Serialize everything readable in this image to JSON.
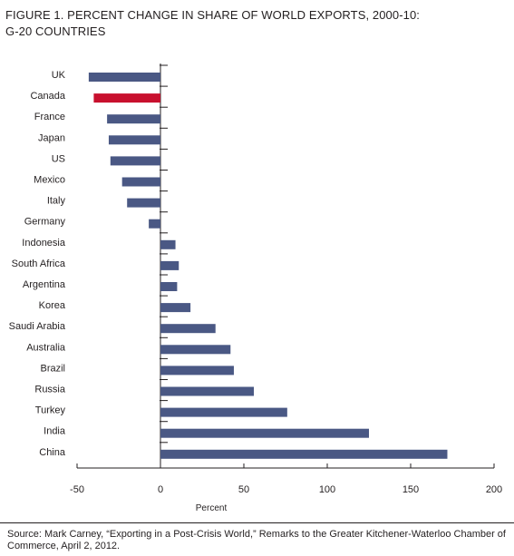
{
  "title_line1": "FIGURE 1. PERCENT CHANGE IN SHARE OF WORLD EXPORTS, 2000-10:",
  "title_line2": "G-20 COUNTRIES",
  "source": "Source: Mark Carney, “Exporting in a Post-Crisis World,” Remarks to the Greater Kitchener-Waterloo Chamber of Commerce, April 2, 2012.",
  "colors": {
    "bar": "#4a5884",
    "highlight": "#c8102e",
    "axis": "#231f20",
    "text": "#231f20"
  },
  "chart_data": {
    "type": "bar",
    "orientation": "horizontal",
    "categories": [
      "UK",
      "Canada",
      "France",
      "Japan",
      "US",
      "Mexico",
      "Italy",
      "Germany",
      "Indonesia",
      "South Africa",
      "Argentina",
      "Korea",
      "Saudi Arabia",
      "Australia",
      "Brazil",
      "Russia",
      "Turkey",
      "India",
      "China"
    ],
    "values": [
      -43,
      -40,
      -32,
      -31,
      -30,
      -23,
      -20,
      -7,
      9,
      11,
      10,
      18,
      33,
      42,
      44,
      56,
      76,
      125,
      172
    ],
    "highlight": "Canada",
    "xlabel": "Percent",
    "xlim": [
      -50,
      200
    ],
    "xticks": [
      -50,
      0,
      50,
      100,
      150,
      200
    ],
    "grid": false
  }
}
